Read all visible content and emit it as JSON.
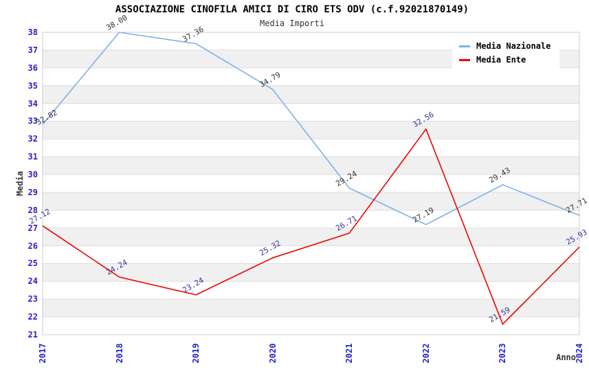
{
  "header": {
    "title": "ASSOCIAZIONE CINOFILA AMICI DI CIRO ETS ODV (c.f.92021870149)",
    "subtitle": "Media Importi"
  },
  "chart_data": {
    "type": "line",
    "title": "ASSOCIAZIONE CINOFILA AMICI DI CIRO ETS ODV (c.f.92021870149)",
    "subtitle": "Media Importi",
    "xlabel": "Anno",
    "ylabel": "Media",
    "x": [
      "2017",
      "2018",
      "2019",
      "2020",
      "2021",
      "2022",
      "2023",
      "2024"
    ],
    "series": [
      {
        "name": "Media Nazionale",
        "color": "#7EB0E6",
        "label_color": "#333333",
        "values": [
          32.82,
          38.0,
          37.36,
          34.79,
          29.24,
          27.19,
          29.43,
          27.71
        ]
      },
      {
        "name": "Media Ente",
        "color": "#EE0000",
        "label_color": "#333399",
        "values": [
          27.12,
          24.24,
          23.24,
          25.32,
          26.71,
          32.56,
          21.59,
          25.93
        ]
      }
    ],
    "ylim": [
      21,
      38
    ],
    "y_tick_step": 1,
    "grid": true,
    "band_colors": [
      "#FFFFFF",
      "#F0F0F0"
    ],
    "gridline_color": "#DDDDDD",
    "plot_border_color": "#CCCCCC",
    "tick_label_color": "#2222CC",
    "legend_position": "top-right"
  }
}
